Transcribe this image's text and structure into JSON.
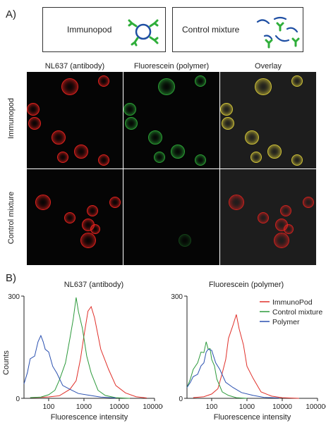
{
  "panel_a": {
    "label": "A)",
    "box_immunopod": "Immunopod",
    "box_control": "Control mixture",
    "col_headers": [
      "NL637 (antibody)",
      "Fluorescein (polymer)",
      "Overlay"
    ],
    "row_headers": [
      "Immunopod",
      "Control mixture"
    ],
    "colors": {
      "antibody": "#e8231f",
      "polymer": "#2fae3a",
      "overlay": "#d7c93a",
      "linker": "#1f4fa3"
    }
  },
  "panel_b": {
    "label": "B)"
  },
  "chart_data": [
    {
      "type": "line",
      "title": "NL637 (antibody)",
      "xlabel": "Fluorescence intensity",
      "ylabel": "Counts",
      "xscale": "log",
      "xlim": [
        20,
        100000
      ],
      "ylim": [
        0,
        300
      ],
      "xticks": [
        "100",
        "1000",
        "10000",
        "100000"
      ],
      "yticks": [
        "0",
        "300"
      ],
      "series": [
        {
          "color": "#e0302a",
          "x": [
            30,
            60,
            100,
            200,
            400,
            600,
            800,
            1000,
            1300,
            1600,
            2000,
            3000,
            5000,
            8000,
            15000,
            30000,
            60000
          ],
          "y": [
            2,
            3,
            4,
            8,
            25,
            55,
            110,
            190,
            250,
            275,
            230,
            150,
            80,
            40,
            15,
            5,
            1
          ]
        },
        {
          "color": "#2d9a3c",
          "x": [
            30,
            60,
            100,
            150,
            200,
            300,
            400,
            500,
            600,
            700,
            900,
            1200,
            1600,
            2500,
            4000,
            8000,
            20000
          ],
          "y": [
            2,
            4,
            10,
            25,
            50,
            110,
            170,
            240,
            290,
            260,
            200,
            130,
            70,
            25,
            8,
            2,
            0
          ]
        },
        {
          "color": "#2a50b0",
          "x": [
            20,
            25,
            30,
            40,
            50,
            60,
            70,
            80,
            100,
            130,
            170,
            250,
            400,
            700,
            1500,
            3000,
            8000
          ],
          "y": [
            40,
            80,
            110,
            130,
            160,
            190,
            160,
            150,
            130,
            100,
            70,
            40,
            25,
            15,
            8,
            4,
            1
          ]
        }
      ]
    },
    {
      "type": "line",
      "title": "Fluorescein (polymer)",
      "xlabel": "Fluorescence intensity",
      "ylabel": "",
      "xscale": "log",
      "xlim": [
        20,
        100000
      ],
      "ylim": [
        0,
        300
      ],
      "xticks": [
        "100",
        "1000",
        "10000",
        "100000"
      ],
      "yticks": [
        "0",
        "300"
      ],
      "legend": [
        "ImmunoPod",
        "Control mixture",
        "Polymer"
      ],
      "legend_position": "top-right",
      "series": [
        {
          "name": "ImmunoPod",
          "color": "#e0302a",
          "x": [
            30,
            60,
            100,
            150,
            200,
            250,
            300,
            400,
            500,
            600,
            800,
            1000,
            1500,
            2500,
            5000,
            10000,
            30000
          ],
          "y": [
            2,
            5,
            12,
            30,
            70,
            120,
            170,
            220,
            240,
            210,
            150,
            100,
            55,
            20,
            6,
            2,
            0
          ]
        },
        {
          "name": "Control mixture",
          "color": "#2d9a3c",
          "x": [
            20,
            25,
            30,
            40,
            50,
            60,
            70,
            80,
            90,
            100,
            120,
            140,
            160,
            200,
            300,
            500,
            1000
          ],
          "y": [
            30,
            60,
            80,
            110,
            130,
            140,
            160,
            150,
            140,
            120,
            90,
            60,
            40,
            20,
            8,
            2,
            0
          ]
        },
        {
          "name": "Polymer",
          "color": "#2a50b0",
          "x": [
            20,
            25,
            30,
            40,
            50,
            60,
            70,
            80,
            100,
            130,
            170,
            250,
            400,
            700,
            1500,
            3000,
            8000
          ],
          "y": [
            30,
            50,
            60,
            75,
            90,
            110,
            130,
            150,
            135,
            110,
            80,
            50,
            30,
            18,
            8,
            3,
            1
          ]
        }
      ]
    }
  ]
}
